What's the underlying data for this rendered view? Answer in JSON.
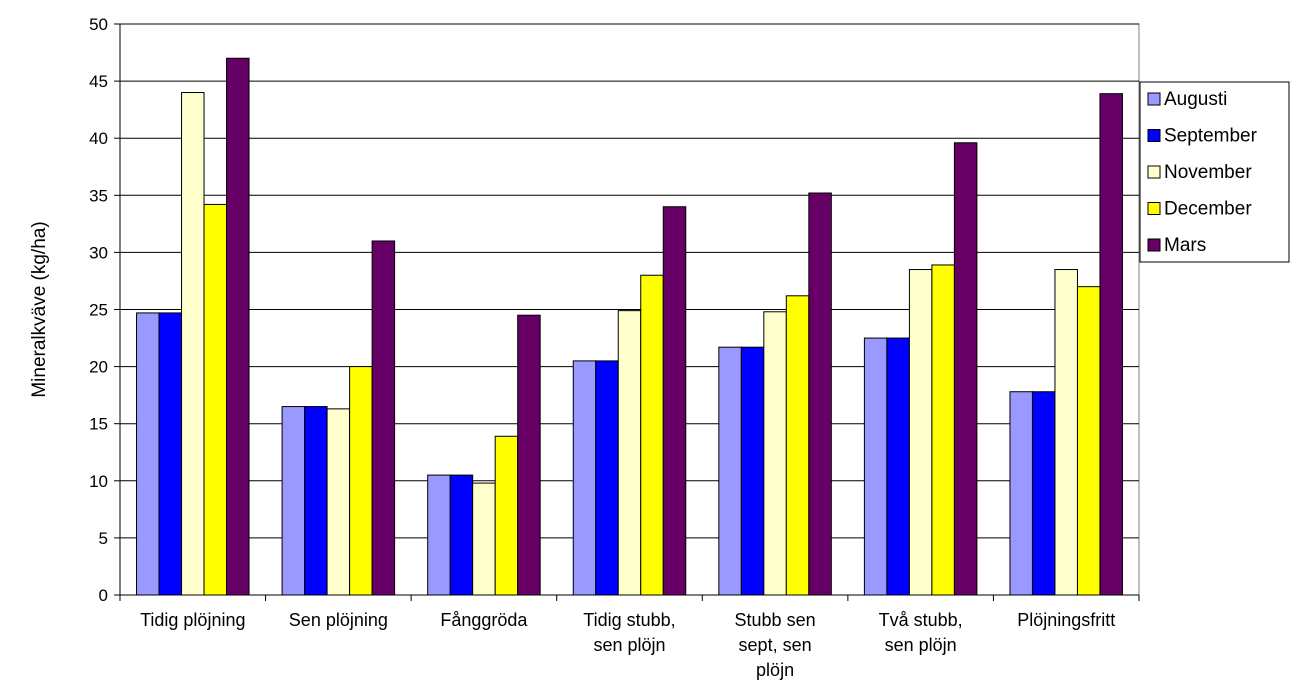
{
  "chart_data": {
    "type": "bar",
    "categories": [
      [
        "Tidig plöjning"
      ],
      [
        "Sen plöjning"
      ],
      [
        "Fånggröda"
      ],
      [
        "Tidig stubb,",
        "sen plöjn"
      ],
      [
        "Stubb sen",
        "sept, sen",
        "plöjn"
      ],
      [
        "Två stubb,",
        "sen plöjn"
      ],
      [
        "Plöjningsfritt"
      ]
    ],
    "series": [
      {
        "name": "Augusti",
        "color": "#9999ff",
        "values": [
          24.7,
          16.5,
          10.5,
          20.5,
          21.7,
          22.5,
          17.8
        ]
      },
      {
        "name": "September",
        "color": "#0000ff",
        "values": [
          24.7,
          16.5,
          10.5,
          20.5,
          21.7,
          22.5,
          17.8
        ]
      },
      {
        "name": "November",
        "color": "#ffffcc",
        "values": [
          44.0,
          16.3,
          9.8,
          24.9,
          24.8,
          28.5,
          28.5
        ]
      },
      {
        "name": "December",
        "color": "#ffff00",
        "values": [
          34.2,
          20.0,
          13.9,
          28.0,
          26.2,
          28.9,
          27.0
        ]
      },
      {
        "name": "Mars",
        "color": "#660066",
        "values": [
          47.0,
          31.0,
          24.5,
          34.0,
          35.2,
          39.6,
          43.9
        ]
      }
    ],
    "title": "",
    "xlabel": "",
    "ylabel": "Mineralkväve (kg/ha)",
    "ylim": [
      0,
      50
    ],
    "yticks": [
      0,
      5,
      10,
      15,
      20,
      25,
      30,
      35,
      40,
      45,
      50
    ],
    "grid": true,
    "legend_position": "right"
  }
}
